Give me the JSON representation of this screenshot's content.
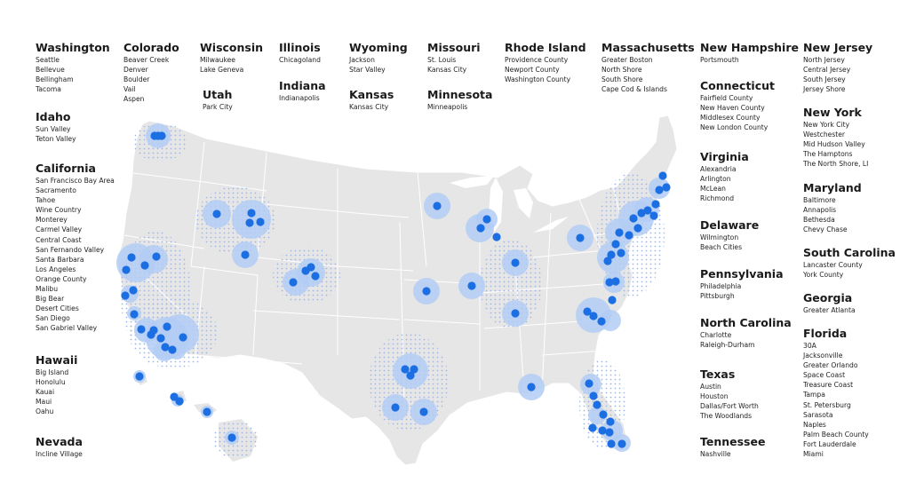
{
  "colors": {
    "land": "#e6e6e6",
    "border": "#ffffff",
    "halo": "#b3ccf5",
    "dot": "#1c6fe3",
    "stipple": "#9fb7e8"
  },
  "groups": [
    {
      "state": "Washington",
      "cities": [
        "Seattle",
        "Bellevue",
        "Bellingham",
        "Tacoma"
      ]
    },
    {
      "state": "Idaho",
      "cities": [
        "Sun Valley",
        "Teton Valley"
      ]
    },
    {
      "state": "California",
      "cities": [
        "San Francisco Bay Area",
        "Sacramento",
        "Tahoe",
        "Wine Country",
        "Monterey",
        "Carmel Valley",
        "Central Coast",
        "San Fernando Valley",
        "Santa Barbara",
        "Los Angeles",
        "Orange County",
        "Malibu",
        "Big Bear",
        "Desert Cities",
        "San Diego",
        "San Gabriel Valley"
      ]
    },
    {
      "state": "Hawaii",
      "cities": [
        "Big Island",
        "Honolulu",
        "Kauai",
        "Maui",
        "Oahu"
      ]
    },
    {
      "state": "Nevada",
      "cities": [
        "Incline Village"
      ]
    },
    {
      "state": "Colorado",
      "cities": [
        "Beaver Creek",
        "Denver",
        "Boulder",
        "Vail",
        "Aspen"
      ]
    },
    {
      "state": "Wisconsin",
      "cities": [
        "Milwaukee",
        "Lake Geneva"
      ]
    },
    {
      "state": "Utah",
      "cities": [
        "Park City"
      ]
    },
    {
      "state": "Illinois",
      "cities": [
        "Chicagoland"
      ]
    },
    {
      "state": "Indiana",
      "cities": [
        "Indianapolis"
      ]
    },
    {
      "state": "Wyoming",
      "cities": [
        "Jackson",
        "Star Valley"
      ]
    },
    {
      "state": "Kansas",
      "cities": [
        "Kansas City"
      ]
    },
    {
      "state": "Missouri",
      "cities": [
        "St. Louis",
        "Kansas City"
      ]
    },
    {
      "state": "Minnesota",
      "cities": [
        "Minneapolis"
      ]
    },
    {
      "state": "Rhode Island",
      "cities": [
        "Providence County",
        "Newport County",
        "Washington County"
      ]
    },
    {
      "state": "Massachusetts",
      "cities": [
        "Greater Boston",
        "North Shore",
        "South Shore",
        "Cape Cod & Islands"
      ]
    },
    {
      "state": "New Hampshire",
      "cities": [
        "Portsmouth"
      ]
    },
    {
      "state": "Connecticut",
      "cities": [
        "Fairfield County",
        "New Haven County",
        "Middlesex County",
        "New London County"
      ]
    },
    {
      "state": "Virginia",
      "cities": [
        "Alexandria",
        "Arlington",
        "McLean",
        "Richmond"
      ]
    },
    {
      "state": "Delaware",
      "cities": [
        "Wilmington",
        "Beach Cities"
      ]
    },
    {
      "state": "Pennsylvania",
      "cities": [
        "Philadelphia",
        "Pittsburgh"
      ]
    },
    {
      "state": "North Carolina",
      "cities": [
        "Charlotte",
        "Raleigh-Durham"
      ]
    },
    {
      "state": "Texas",
      "cities": [
        "Austin",
        "Houston",
        "Dallas/Fort Worth",
        "The Woodlands"
      ]
    },
    {
      "state": "Tennessee",
      "cities": [
        "Nashville"
      ]
    },
    {
      "state": "New Jersey",
      "cities": [
        "North Jersey",
        "Central Jersey",
        "South Jersey",
        "Jersey Shore"
      ]
    },
    {
      "state": "New York",
      "cities": [
        "New York City",
        "Westchester",
        "Mid Hudson Valley",
        "The Hamptons",
        "The North Shore, LI"
      ]
    },
    {
      "state": "Maryland",
      "cities": [
        "Baltimore",
        "Annapolis",
        "Bethesda",
        "Chevy Chase"
      ]
    },
    {
      "state": "South Carolina",
      "cities": [
        "Lancaster County",
        "York County"
      ]
    },
    {
      "state": "Georgia",
      "cities": [
        "Greater Atlanta"
      ]
    },
    {
      "state": "Florida",
      "cities": [
        "30A",
        "Jacksonville",
        "Greater Orlando",
        "Space Coast",
        "Treasure Coast",
        "Tampa",
        "St. Petersburg",
        "Sarasota",
        "Naples",
        "Palm Beach County",
        "Fort Lauderdale",
        "Miami"
      ]
    }
  ]
}
